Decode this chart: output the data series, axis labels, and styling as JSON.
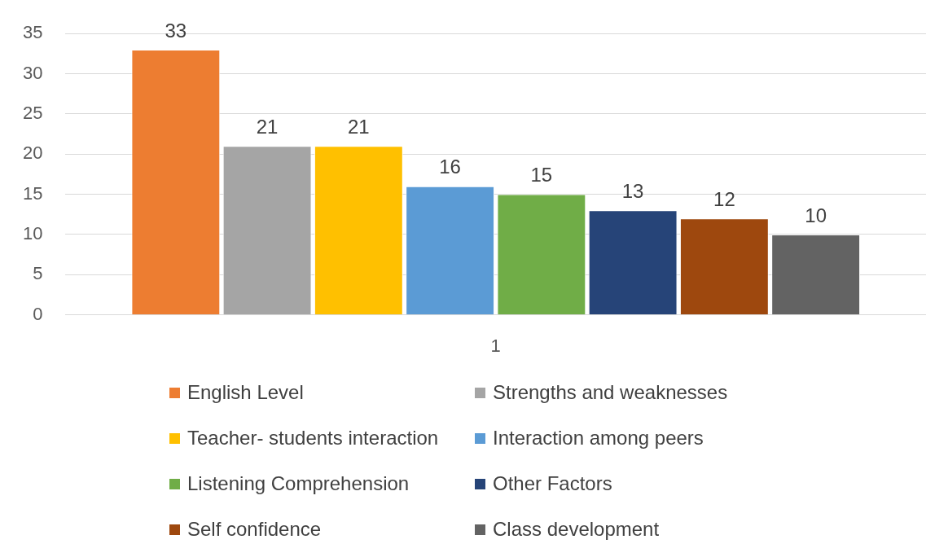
{
  "chart_data": {
    "type": "bar",
    "categories": [
      "1"
    ],
    "series": [
      {
        "name": "English Level",
        "color": "#ed7d31",
        "values": [
          33
        ]
      },
      {
        "name": "Strengths and weaknesses",
        "color": "#a5a5a5",
        "values": [
          21
        ]
      },
      {
        "name": "Teacher- students interaction",
        "color": "#ffc000",
        "values": [
          21
        ]
      },
      {
        "name": "Interaction among peers",
        "color": "#5b9bd5",
        "values": [
          16
        ]
      },
      {
        "name": "Listening Comprehension",
        "color": "#70ad47",
        "values": [
          15
        ]
      },
      {
        "name": "Other Factors",
        "color": "#264478",
        "values": [
          13
        ]
      },
      {
        "name": "Self confidence",
        "color": "#9e480e",
        "values": [
          12
        ]
      },
      {
        "name": "Class development",
        "color": "#636363",
        "values": [
          10
        ]
      }
    ],
    "ylim": [
      0,
      35
    ],
    "yticks": [
      0,
      5,
      10,
      15,
      20,
      25,
      30,
      35
    ],
    "grid": "y",
    "legend": "bottom",
    "data_labels": true
  }
}
